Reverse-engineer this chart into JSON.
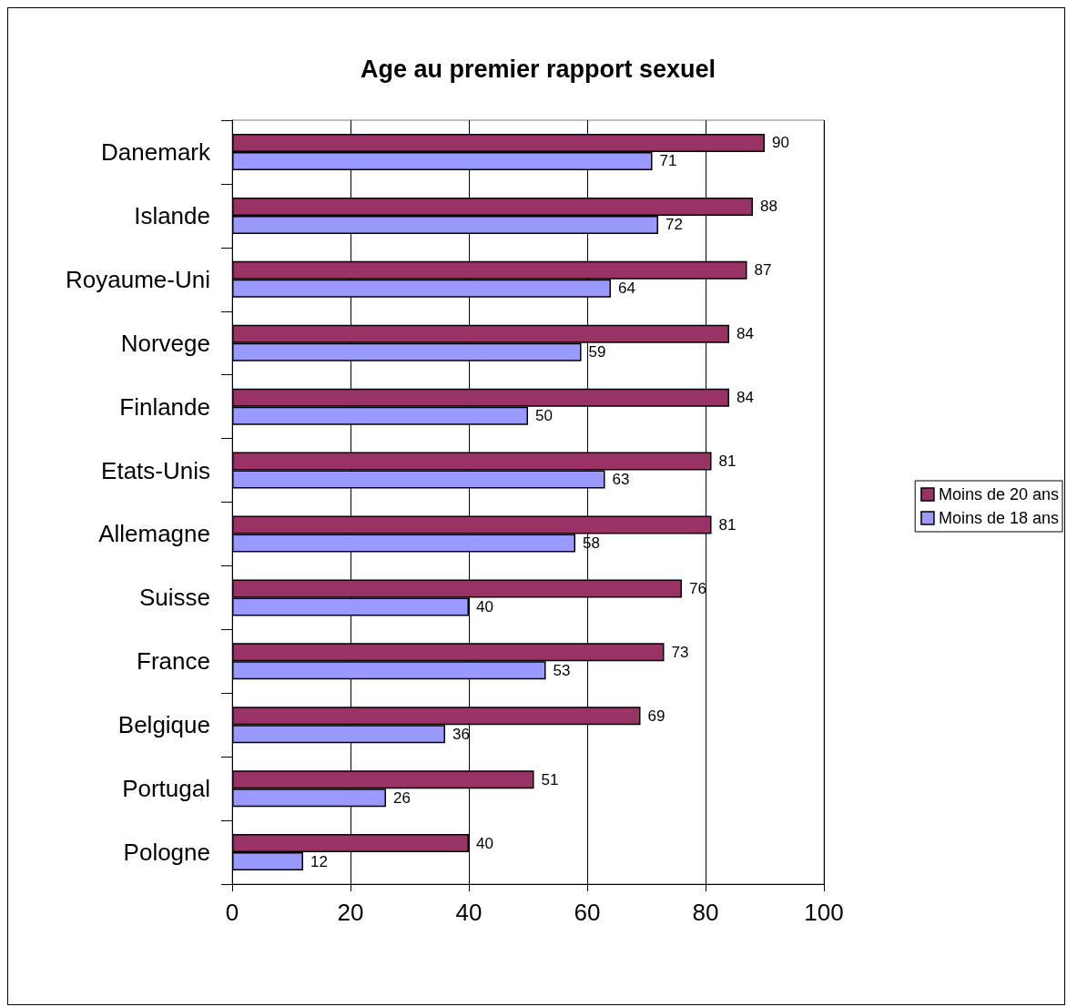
{
  "chart_data": {
    "type": "bar",
    "orientation": "horizontal",
    "title": "Age au premier rapport sexuel",
    "categories": [
      "Danemark",
      "Islande",
      "Royaume-Uni",
      "Norvege",
      "Finlande",
      "Etats-Unis",
      "Allemagne",
      "Suisse",
      "France",
      "Belgique",
      "Portugal",
      "Pologne"
    ],
    "series": [
      {
        "name": "Moins de 20 ans",
        "color": "#993366",
        "values": [
          90,
          88,
          87,
          84,
          84,
          81,
          81,
          76,
          73,
          69,
          51,
          40
        ]
      },
      {
        "name": "Moins de 18 ans",
        "color": "#9999ff",
        "values": [
          71,
          72,
          64,
          59,
          50,
          63,
          58,
          40,
          53,
          36,
          26,
          12
        ]
      }
    ],
    "xlim": [
      0,
      100
    ],
    "xticks": [
      0,
      20,
      40,
      60,
      80,
      100
    ],
    "grid": "x",
    "legend": "right",
    "data_labels": true
  }
}
